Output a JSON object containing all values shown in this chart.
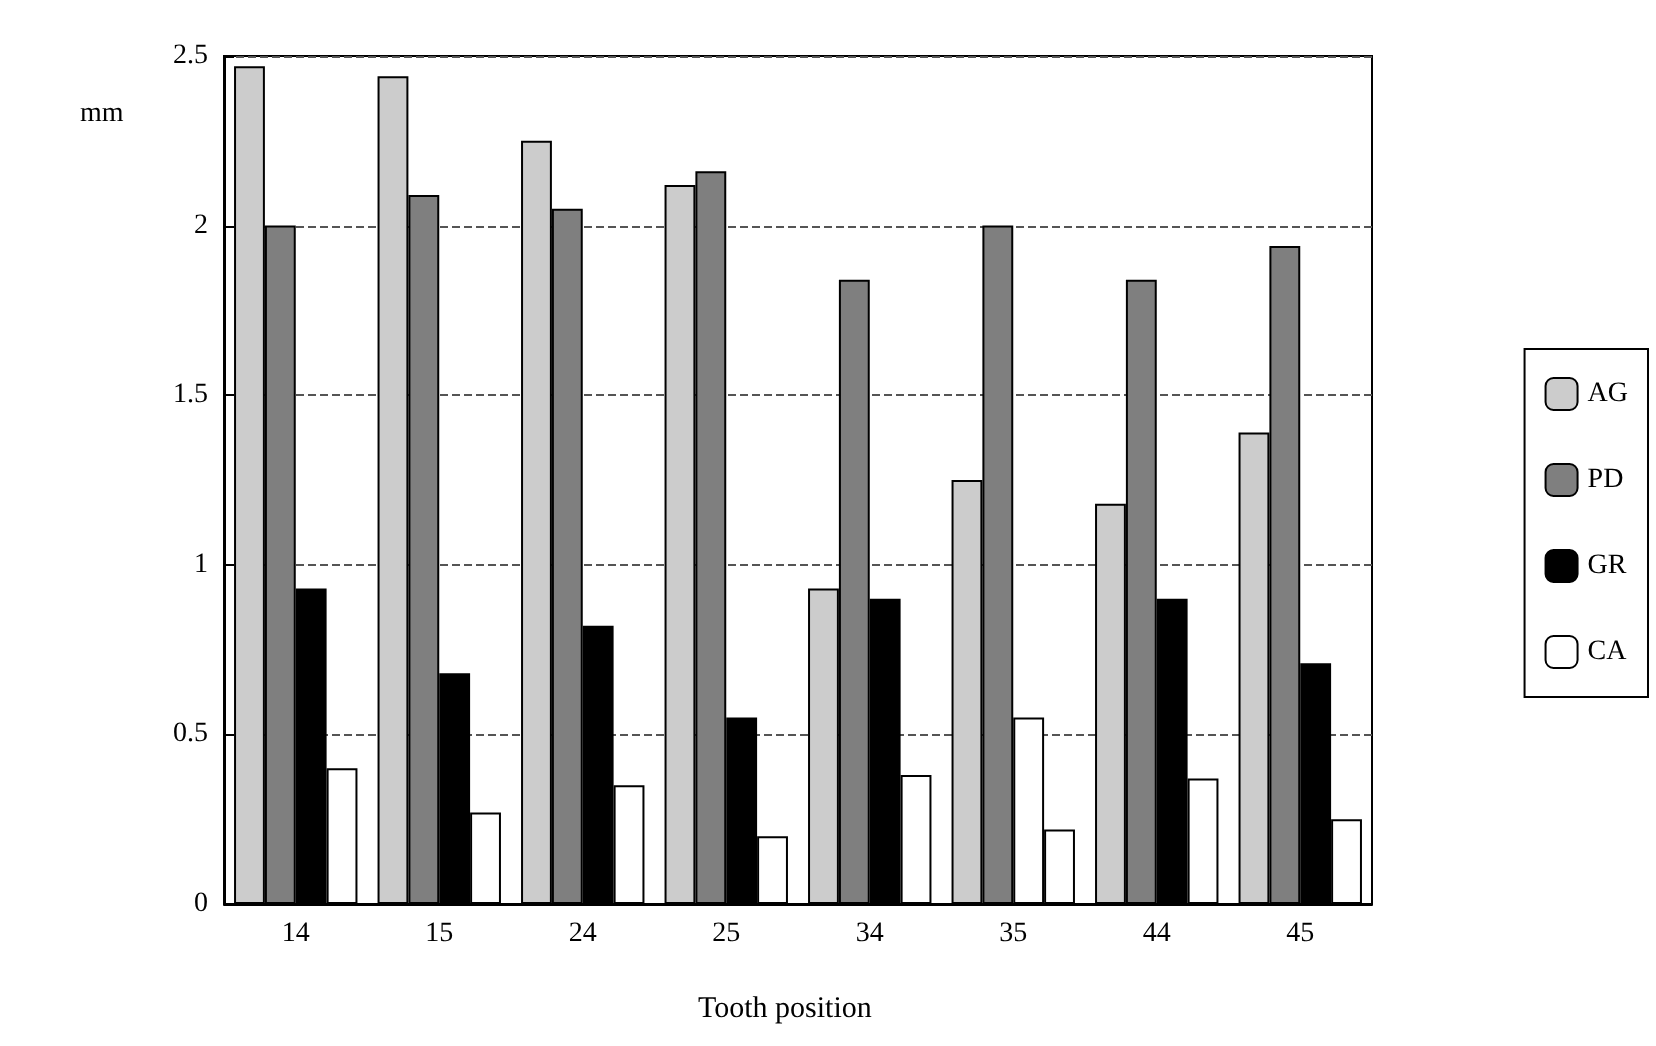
{
  "chart_data": {
    "type": "bar",
    "xlabel": "Tooth position",
    "ylabel": "mm",
    "categories": [
      "14",
      "15",
      "24",
      "25",
      "34",
      "35",
      "44",
      "45"
    ],
    "series": [
      {
        "name": "AG",
        "color": "#cccccc",
        "values": [
          2.47,
          2.44,
          2.25,
          2.12,
          0.93,
          1.25,
          1.18,
          1.39
        ]
      },
      {
        "name": "PD",
        "color": "#7f7f7f",
        "values": [
          2.0,
          2.09,
          2.05,
          2.16,
          1.84,
          2.0,
          1.84,
          1.94
        ]
      },
      {
        "name": "GR",
        "color": "#000000",
        "colors": [
          "#000000",
          "#000000",
          "#000000",
          "#000000",
          "#000000",
          "#ffffff",
          "#000000",
          "#000000"
        ],
        "values": [
          0.93,
          0.68,
          0.82,
          0.55,
          0.9,
          0.55,
          0.9,
          0.71
        ]
      },
      {
        "name": "CA",
        "color": "#ffffff",
        "values": [
          0.4,
          0.27,
          0.35,
          0.2,
          0.38,
          0.22,
          0.37,
          0.25
        ]
      }
    ],
    "ylim": [
      0,
      2.5
    ],
    "yticks": [
      0,
      0.5,
      1,
      1.5,
      2,
      2.5
    ],
    "grid": "y",
    "legend": "right"
  }
}
